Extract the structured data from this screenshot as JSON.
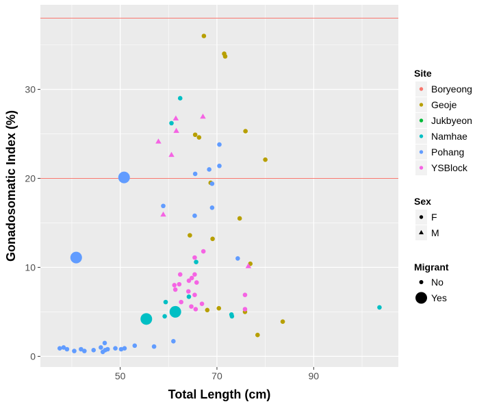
{
  "chart_data": {
    "type": "scatter",
    "xlabel": "Total Length (cm)",
    "ylabel": "Gonadosomatic Index (%)",
    "xlim": [
      33.5,
      107.5
    ],
    "ylim": [
      -1.2,
      39.5
    ],
    "x_ticks": [
      50,
      70,
      90
    ],
    "y_ticks": [
      0,
      10,
      20,
      30
    ],
    "grid": true,
    "reference_lines_y": [
      20,
      38
    ],
    "reference_line_color": "#F8766D",
    "legend": {
      "placement": "right",
      "site": {
        "title": "Site",
        "entries": [
          {
            "label": "Boryeong",
            "color": "#F8766D"
          },
          {
            "label": "Geoje",
            "color": "#B79F00"
          },
          {
            "label": "Jukbyeon",
            "color": "#00BA38"
          },
          {
            "label": "Namhae",
            "color": "#00BFC4"
          },
          {
            "label": "Pohang",
            "color": "#619CFF"
          },
          {
            "label": "YSBlock",
            "color": "#F564E3"
          }
        ]
      },
      "sex": {
        "title": "Sex",
        "entries": [
          {
            "label": "F",
            "shape": "circle"
          },
          {
            "label": "M",
            "shape": "triangle"
          }
        ]
      },
      "migrant": {
        "title": "Migrant",
        "entries": [
          {
            "label": "No",
            "size": "small"
          },
          {
            "label": "Yes",
            "size": "large"
          }
        ]
      }
    },
    "points": [
      {
        "x": 67.3,
        "y": 36.0,
        "site": "Geoje",
        "sex": "F",
        "migrant": "No"
      },
      {
        "x": 71.5,
        "y": 34.0,
        "site": "Geoje",
        "sex": "F",
        "migrant": "No"
      },
      {
        "x": 71.7,
        "y": 33.7,
        "site": "Geoje",
        "sex": "F",
        "migrant": "No"
      },
      {
        "x": 75.9,
        "y": 25.3,
        "site": "Geoje",
        "sex": "F",
        "migrant": "No"
      },
      {
        "x": 65.5,
        "y": 24.9,
        "site": "Geoje",
        "sex": "F",
        "migrant": "No"
      },
      {
        "x": 66.3,
        "y": 24.6,
        "site": "Geoje",
        "sex": "F",
        "migrant": "No"
      },
      {
        "x": 80.0,
        "y": 22.1,
        "site": "Geoje",
        "sex": "F",
        "migrant": "No"
      },
      {
        "x": 68.7,
        "y": 19.5,
        "site": "Geoje",
        "sex": "F",
        "migrant": "No"
      },
      {
        "x": 74.7,
        "y": 15.5,
        "site": "Geoje",
        "sex": "F",
        "migrant": "No"
      },
      {
        "x": 64.4,
        "y": 13.6,
        "site": "Geoje",
        "sex": "F",
        "migrant": "No"
      },
      {
        "x": 69.1,
        "y": 13.2,
        "site": "Geoje",
        "sex": "F",
        "migrant": "No"
      },
      {
        "x": 76.9,
        "y": 10.4,
        "site": "Geoje",
        "sex": "F",
        "migrant": "No"
      },
      {
        "x": 70.4,
        "y": 5.4,
        "site": "Geoje",
        "sex": "F",
        "migrant": "No"
      },
      {
        "x": 68.0,
        "y": 5.2,
        "site": "Geoje",
        "sex": "F",
        "migrant": "No"
      },
      {
        "x": 75.8,
        "y": 5.0,
        "site": "Geoje",
        "sex": "F",
        "migrant": "No"
      },
      {
        "x": 83.6,
        "y": 3.9,
        "site": "Geoje",
        "sex": "F",
        "migrant": "No"
      },
      {
        "x": 78.4,
        "y": 2.4,
        "site": "Geoje",
        "sex": "F",
        "migrant": "No"
      },
      {
        "x": 62.4,
        "y": 29.0,
        "site": "Namhae",
        "sex": "F",
        "migrant": "No"
      },
      {
        "x": 60.6,
        "y": 26.2,
        "site": "Namhae",
        "sex": "F",
        "migrant": "No"
      },
      {
        "x": 65.7,
        "y": 10.6,
        "site": "Namhae",
        "sex": "F",
        "migrant": "No"
      },
      {
        "x": 59.4,
        "y": 6.1,
        "site": "Namhae",
        "sex": "F",
        "migrant": "No"
      },
      {
        "x": 64.2,
        "y": 6.7,
        "site": "Namhae",
        "sex": "F",
        "migrant": "No"
      },
      {
        "x": 59.2,
        "y": 4.5,
        "site": "Namhae",
        "sex": "F",
        "migrant": "No"
      },
      {
        "x": 73.1,
        "y": 4.5,
        "site": "Namhae",
        "sex": "F",
        "migrant": "No"
      },
      {
        "x": 73.0,
        "y": 4.7,
        "site": "Namhae",
        "sex": "F",
        "migrant": "No"
      },
      {
        "x": 103.6,
        "y": 5.5,
        "site": "Namhae",
        "sex": "F",
        "migrant": "No"
      },
      {
        "x": 55.4,
        "y": 4.2,
        "site": "Namhae",
        "sex": "F",
        "migrant": "Yes"
      },
      {
        "x": 61.4,
        "y": 5.0,
        "site": "Namhae",
        "sex": "F",
        "migrant": "Yes"
      },
      {
        "x": 70.5,
        "y": 23.8,
        "site": "Pohang",
        "sex": "F",
        "migrant": "No"
      },
      {
        "x": 70.5,
        "y": 21.4,
        "site": "Pohang",
        "sex": "F",
        "migrant": "No"
      },
      {
        "x": 68.4,
        "y": 21.0,
        "site": "Pohang",
        "sex": "F",
        "migrant": "No"
      },
      {
        "x": 65.5,
        "y": 20.5,
        "site": "Pohang",
        "sex": "F",
        "migrant": "No"
      },
      {
        "x": 69.0,
        "y": 19.4,
        "site": "Pohang",
        "sex": "F",
        "migrant": "No"
      },
      {
        "x": 58.9,
        "y": 16.9,
        "site": "Pohang",
        "sex": "F",
        "migrant": "No"
      },
      {
        "x": 69.0,
        "y": 16.7,
        "site": "Pohang",
        "sex": "F",
        "migrant": "No"
      },
      {
        "x": 65.4,
        "y": 15.8,
        "site": "Pohang",
        "sex": "F",
        "migrant": "No"
      },
      {
        "x": 74.3,
        "y": 11.0,
        "site": "Pohang",
        "sex": "F",
        "migrant": "No"
      },
      {
        "x": 61.0,
        "y": 1.7,
        "site": "Pohang",
        "sex": "F",
        "migrant": "No"
      },
      {
        "x": 57.0,
        "y": 1.1,
        "site": "Pohang",
        "sex": "F",
        "migrant": "No"
      },
      {
        "x": 53.0,
        "y": 1.2,
        "site": "Pohang",
        "sex": "F",
        "migrant": "No"
      },
      {
        "x": 50.9,
        "y": 0.9,
        "site": "Pohang",
        "sex": "F",
        "migrant": "No"
      },
      {
        "x": 50.2,
        "y": 0.8,
        "site": "Pohang",
        "sex": "F",
        "migrant": "No"
      },
      {
        "x": 49.0,
        "y": 0.9,
        "site": "Pohang",
        "sex": "F",
        "migrant": "No"
      },
      {
        "x": 47.4,
        "y": 0.8,
        "site": "Pohang",
        "sex": "F",
        "migrant": "No"
      },
      {
        "x": 46.8,
        "y": 1.5,
        "site": "Pohang",
        "sex": "F",
        "migrant": "No"
      },
      {
        "x": 46.9,
        "y": 0.7,
        "site": "Pohang",
        "sex": "F",
        "migrant": "No"
      },
      {
        "x": 46.0,
        "y": 1.0,
        "site": "Pohang",
        "sex": "F",
        "migrant": "No"
      },
      {
        "x": 46.4,
        "y": 0.5,
        "site": "Pohang",
        "sex": "F",
        "migrant": "No"
      },
      {
        "x": 44.5,
        "y": 0.7,
        "site": "Pohang",
        "sex": "F",
        "migrant": "No"
      },
      {
        "x": 42.6,
        "y": 0.6,
        "site": "Pohang",
        "sex": "F",
        "migrant": "No"
      },
      {
        "x": 41.9,
        "y": 0.8,
        "site": "Pohang",
        "sex": "F",
        "migrant": "No"
      },
      {
        "x": 40.5,
        "y": 0.6,
        "site": "Pohang",
        "sex": "F",
        "migrant": "No"
      },
      {
        "x": 39.0,
        "y": 0.8,
        "site": "Pohang",
        "sex": "F",
        "migrant": "No"
      },
      {
        "x": 38.3,
        "y": 1.0,
        "site": "Pohang",
        "sex": "F",
        "migrant": "No"
      },
      {
        "x": 37.5,
        "y": 0.9,
        "site": "Pohang",
        "sex": "F",
        "migrant": "No"
      },
      {
        "x": 50.8,
        "y": 20.1,
        "site": "Pohang",
        "sex": "F",
        "migrant": "Yes"
      },
      {
        "x": 40.9,
        "y": 11.1,
        "site": "Pohang",
        "sex": "F",
        "migrant": "Yes"
      },
      {
        "x": 61.5,
        "y": 26.7,
        "site": "YSBlock",
        "sex": "M",
        "migrant": "No"
      },
      {
        "x": 67.1,
        "y": 26.9,
        "site": "YSBlock",
        "sex": "M",
        "migrant": "No"
      },
      {
        "x": 61.6,
        "y": 25.3,
        "site": "YSBlock",
        "sex": "M",
        "migrant": "No"
      },
      {
        "x": 57.9,
        "y": 24.1,
        "site": "YSBlock",
        "sex": "M",
        "migrant": "No"
      },
      {
        "x": 60.6,
        "y": 22.6,
        "site": "YSBlock",
        "sex": "M",
        "migrant": "No"
      },
      {
        "x": 58.9,
        "y": 15.9,
        "site": "YSBlock",
        "sex": "M",
        "migrant": "No"
      },
      {
        "x": 76.5,
        "y": 10.1,
        "site": "YSBlock",
        "sex": "M",
        "migrant": "No"
      },
      {
        "x": 67.2,
        "y": 11.8,
        "site": "YSBlock",
        "sex": "F",
        "migrant": "No"
      },
      {
        "x": 65.4,
        "y": 11.1,
        "site": "YSBlock",
        "sex": "F",
        "migrant": "No"
      },
      {
        "x": 62.4,
        "y": 9.2,
        "site": "YSBlock",
        "sex": "F",
        "migrant": "No"
      },
      {
        "x": 65.4,
        "y": 9.2,
        "site": "YSBlock",
        "sex": "F",
        "migrant": "No"
      },
      {
        "x": 64.8,
        "y": 8.8,
        "site": "YSBlock",
        "sex": "F",
        "migrant": "No"
      },
      {
        "x": 64.2,
        "y": 8.5,
        "site": "YSBlock",
        "sex": "F",
        "migrant": "No"
      },
      {
        "x": 65.8,
        "y": 8.3,
        "site": "YSBlock",
        "sex": "F",
        "migrant": "No"
      },
      {
        "x": 62.2,
        "y": 8.1,
        "site": "YSBlock",
        "sex": "F",
        "migrant": "No"
      },
      {
        "x": 61.2,
        "y": 8.0,
        "site": "YSBlock",
        "sex": "F",
        "migrant": "No"
      },
      {
        "x": 61.4,
        "y": 7.5,
        "site": "YSBlock",
        "sex": "F",
        "migrant": "No"
      },
      {
        "x": 64.1,
        "y": 7.3,
        "site": "YSBlock",
        "sex": "F",
        "migrant": "No"
      },
      {
        "x": 65.4,
        "y": 6.9,
        "site": "YSBlock",
        "sex": "F",
        "migrant": "No"
      },
      {
        "x": 75.8,
        "y": 6.9,
        "site": "YSBlock",
        "sex": "F",
        "migrant": "No"
      },
      {
        "x": 62.6,
        "y": 6.1,
        "site": "YSBlock",
        "sex": "F",
        "migrant": "No"
      },
      {
        "x": 66.9,
        "y": 5.9,
        "site": "YSBlock",
        "sex": "F",
        "migrant": "No"
      },
      {
        "x": 64.7,
        "y": 5.6,
        "site": "YSBlock",
        "sex": "F",
        "migrant": "No"
      },
      {
        "x": 65.6,
        "y": 5.3,
        "site": "YSBlock",
        "sex": "F",
        "migrant": "No"
      },
      {
        "x": 75.8,
        "y": 5.3,
        "site": "YSBlock",
        "sex": "F",
        "migrant": "No"
      }
    ]
  }
}
